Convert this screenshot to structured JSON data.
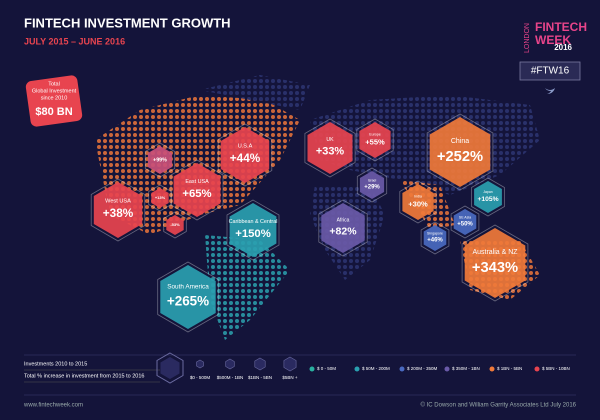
{
  "header": {
    "title": "FINTECH INVESTMENT  GROWTH",
    "subtitle": "JULY 2015 – JUNE 2016"
  },
  "logo": {
    "city": "LONDON",
    "line1": "FINTECH",
    "line2": "WEEK",
    "year": "2016",
    "hashtag": "#FTW16"
  },
  "total": {
    "label_lines": [
      "Total",
      "Global Investment",
      "since 2010"
    ],
    "value": "$80 BN"
  },
  "regions": [
    {
      "label": "U.S.A",
      "change": "+44%",
      "color": "#e8444f"
    },
    {
      "label": "East USA",
      "change": "+65%",
      "color": "#e8444f"
    },
    {
      "label": "West USA",
      "change": "+38%",
      "color": "#e8444f"
    },
    {
      "change": "+99%",
      "color": "#c9507a"
    },
    {
      "change": "+13%",
      "color": "#e8444f"
    },
    {
      "change": "-53%",
      "color": "#e8444f"
    },
    {
      "label": "Caribbean & Central",
      "change": "+150%",
      "color": "#2aa0b0"
    },
    {
      "label": "South America",
      "change": "+265%",
      "color": "#2aa0b0"
    },
    {
      "label": "UK",
      "change": "+33%",
      "color": "#e8444f"
    },
    {
      "label": "Europe",
      "change": "+55%",
      "color": "#e8444f"
    },
    {
      "label": "Israel",
      "change": "+29%",
      "color": "#6a5aa8"
    },
    {
      "label": "Africa",
      "change": "+82%",
      "color": "#6a5aa8"
    },
    {
      "label": "India",
      "change": "+30%",
      "color": "#f07a3a"
    },
    {
      "label": "China",
      "change": "+252%",
      "color": "#f07a3a"
    },
    {
      "label": "Japan",
      "change": "+105%",
      "color": "#2aa0b0"
    },
    {
      "label": "SE Asia",
      "change": "+50%",
      "color": "#4a6ac0"
    },
    {
      "label": "Singapore",
      "change": "+46%",
      "color": "#4a6ac0"
    },
    {
      "label": "Australia & NZ",
      "change": "+343%",
      "color": "#f07a3a"
    }
  ],
  "legend": {
    "size_title": "Investments 2010 to 2015",
    "change_title": "Total % increase in investment  from 2015 to 2016",
    "sizes": [
      "$0 - 500M",
      "$500M - 1BN",
      "$1BN - 5BN",
      "$5BN +"
    ],
    "colors": [
      {
        "label": "$ 0 - 50M",
        "color": "#2ab0a0"
      },
      {
        "label": "$ 50M - 200M",
        "color": "#2aa0b0"
      },
      {
        "label": "$ 200M - 350M",
        "color": "#4a6ac0"
      },
      {
        "label": "$ 350M - 1BN",
        "color": "#6a5aa8"
      },
      {
        "label": "$ 1BN - 5BN",
        "color": "#f07a3a"
      },
      {
        "label": "$ 5BN - 10BN",
        "color": "#e8444f"
      }
    ]
  },
  "footer": {
    "website": "www.fintechweek.com",
    "copyright": "© IC Dowson and William Garrity Associates Ltd July 2016"
  }
}
